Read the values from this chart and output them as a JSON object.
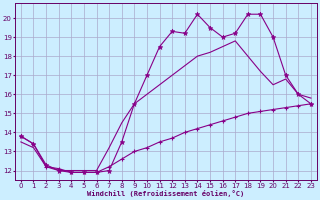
{
  "xlabel": "Windchill (Refroidissement éolien,°C)",
  "bg_color": "#cceeff",
  "grid_color": "#aaaacc",
  "line_color": "#880088",
  "xlim": [
    -0.5,
    23.5
  ],
  "ylim": [
    11.5,
    20.8
  ],
  "xticks": [
    0,
    1,
    2,
    3,
    4,
    5,
    6,
    7,
    8,
    9,
    10,
    11,
    12,
    13,
    14,
    15,
    16,
    17,
    18,
    19,
    20,
    21,
    22,
    23
  ],
  "yticks": [
    12,
    13,
    14,
    15,
    16,
    17,
    18,
    19,
    20
  ],
  "line1_x": [
    0,
    1,
    2,
    3,
    4,
    5,
    6,
    7,
    8,
    9,
    10,
    11,
    12,
    13,
    14,
    15,
    16,
    17,
    18,
    19,
    20,
    21,
    22,
    23
  ],
  "line1_y": [
    13.8,
    13.4,
    12.2,
    12.1,
    11.9,
    11.9,
    11.9,
    12.2,
    12.6,
    13.0,
    13.2,
    13.5,
    13.7,
    14.0,
    14.2,
    14.4,
    14.6,
    14.8,
    15.0,
    15.1,
    15.2,
    15.3,
    15.4,
    15.5
  ],
  "line2_x": [
    0,
    1,
    2,
    3,
    4,
    5,
    6,
    7,
    8,
    9,
    10,
    11,
    12,
    13,
    14,
    15,
    16,
    17,
    18,
    19,
    20,
    21,
    22,
    23
  ],
  "line2_y": [
    13.5,
    13.2,
    12.2,
    12.0,
    12.0,
    12.0,
    12.0,
    13.2,
    14.5,
    15.5,
    16.0,
    16.5,
    17.0,
    17.5,
    18.0,
    18.2,
    18.5,
    18.8,
    18.0,
    17.2,
    16.5,
    16.8,
    16.0,
    15.8
  ],
  "line3_x": [
    0,
    1,
    2,
    3,
    4,
    5,
    6,
    7,
    8,
    9,
    10,
    11,
    12,
    13,
    14,
    15,
    16,
    17,
    18,
    19,
    20,
    21,
    22,
    23
  ],
  "line3_y": [
    13.8,
    13.4,
    12.3,
    12.0,
    11.9,
    11.9,
    11.9,
    12.0,
    13.5,
    15.5,
    17.0,
    18.5,
    19.3,
    19.2,
    20.2,
    19.5,
    19.0,
    19.2,
    20.2,
    20.2,
    19.0,
    17.0,
    16.0,
    15.5
  ]
}
